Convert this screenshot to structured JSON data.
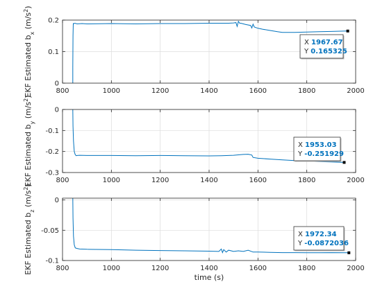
{
  "colors": {
    "series": "#0072BD",
    "axes": "#262626",
    "grid": "#dcdcdc",
    "datatip_value": "#0072BD"
  },
  "chart_data": [
    {
      "type": "line",
      "ylabel_prefix": "EKF Estimated b",
      "ylabel_sub": "x",
      "ylabel_unit_open": " (m/s",
      "ylabel_unit_sup": "2",
      "ylabel_unit_close": ")",
      "xlim": [
        800,
        2000
      ],
      "ylim": [
        0,
        0.2
      ],
      "xticks": [
        800,
        1000,
        1200,
        1400,
        1600,
        1800,
        2000
      ],
      "yticks": [
        0,
        0.1,
        0.2
      ],
      "ytick_labels": [
        "0",
        "0.1",
        "0.2"
      ],
      "grid": true,
      "series": [
        {
          "x": [
            842,
            842,
            843,
            844,
            845,
            850,
            860,
            880,
            900,
            1000,
            1100,
            1200,
            1300,
            1400,
            1480,
            1500,
            1510,
            1515,
            1520,
            1525,
            1530,
            1550,
            1570,
            1575,
            1580,
            1585,
            1600,
            1620,
            1650,
            1680,
            1700,
            1750,
            1800,
            1850,
            1900,
            1950,
            1967.67
          ],
          "y": [
            0.0,
            0.05,
            0.15,
            0.19,
            0.188,
            0.19,
            0.188,
            0.189,
            0.188,
            0.189,
            0.188,
            0.189,
            0.189,
            0.19,
            0.19,
            0.191,
            0.192,
            0.18,
            0.196,
            0.19,
            0.19,
            0.186,
            0.183,
            0.175,
            0.187,
            0.178,
            0.174,
            0.171,
            0.167,
            0.163,
            0.161,
            0.161,
            0.162,
            0.163,
            0.164,
            0.165,
            0.165325
          ]
        }
      ],
      "datatip": {
        "x_label": "X",
        "x_value": "1967.67",
        "y_label": "Y",
        "y_value": "0.165325",
        "x": 1967.67,
        "y": 0.165325
      }
    },
    {
      "type": "line",
      "ylabel_prefix": "EKF Estimated b",
      "ylabel_sub": "y",
      "ylabel_unit_open": " (m/s",
      "ylabel_unit_sup": "2",
      "ylabel_unit_close": ")",
      "xlim": [
        800,
        2000
      ],
      "ylim": [
        -0.3,
        0
      ],
      "xticks": [
        800,
        1000,
        1200,
        1400,
        1600,
        1800,
        2000
      ],
      "yticks": [
        -0.3,
        -0.2,
        -0.1,
        0
      ],
      "ytick_labels": [
        "-0.3",
        "-0.2",
        "-0.1",
        "0"
      ],
      "grid": true,
      "series": [
        {
          "x": [
            842,
            843,
            845,
            848,
            852,
            856,
            860,
            870,
            900,
            1000,
            1100,
            1200,
            1300,
            1400,
            1450,
            1500,
            1540,
            1560,
            1575,
            1580,
            1600,
            1650,
            1700,
            1750,
            1800,
            1850,
            1900,
            1953.03
          ],
          "y": [
            0.0,
            -0.08,
            -0.15,
            -0.2,
            -0.215,
            -0.22,
            -0.219,
            -0.218,
            -0.219,
            -0.219,
            -0.22,
            -0.219,
            -0.22,
            -0.221,
            -0.22,
            -0.218,
            -0.214,
            -0.213,
            -0.217,
            -0.228,
            -0.232,
            -0.236,
            -0.24,
            -0.243,
            -0.246,
            -0.248,
            -0.25,
            -0.251929
          ]
        }
      ],
      "datatip": {
        "x_label": "X",
        "x_value": "1953.03",
        "y_label": "Y",
        "y_value": "-0.251929",
        "x": 1953.03,
        "y": -0.251929
      }
    },
    {
      "type": "line",
      "ylabel_prefix": "EKF Estimated b",
      "ylabel_sub": "z",
      "ylabel_unit_open": " (m/s",
      "ylabel_unit_sup": "2",
      "ylabel_unit_close": ")",
      "xlabel": "time (s)",
      "xlim": [
        800,
        2000
      ],
      "ylim": [
        -0.1,
        0.003
      ],
      "xticks": [
        800,
        1000,
        1200,
        1400,
        1600,
        1800,
        2000
      ],
      "yticks": [
        -0.1,
        -0.05,
        0
      ],
      "ytick_labels": [
        "-0.1",
        "-0.05",
        "0"
      ],
      "grid": true,
      "series": [
        {
          "x": [
            842,
            843,
            845,
            848,
            852,
            858,
            870,
            900,
            1000,
            1100,
            1200,
            1300,
            1400,
            1440,
            1450,
            1455,
            1460,
            1470,
            1480,
            1500,
            1520,
            1540,
            1560,
            1580,
            1600,
            1650,
            1700,
            1750,
            1800,
            1850,
            1900,
            1950,
            1972.34
          ],
          "y": [
            0.003,
            -0.03,
            -0.06,
            -0.074,
            -0.079,
            -0.08,
            -0.081,
            -0.0815,
            -0.082,
            -0.083,
            -0.0835,
            -0.084,
            -0.0845,
            -0.085,
            -0.081,
            -0.087,
            -0.082,
            -0.086,
            -0.083,
            -0.085,
            -0.084,
            -0.085,
            -0.083,
            -0.086,
            -0.086,
            -0.0865,
            -0.087,
            -0.087,
            -0.0872,
            -0.0872,
            -0.087,
            -0.0872,
            -0.0872036
          ]
        }
      ],
      "datatip": {
        "x_label": "X",
        "x_value": "1972.34",
        "y_label": "Y",
        "y_value": "-0.0872036",
        "x": 1972.34,
        "y": -0.0872036
      }
    }
  ]
}
